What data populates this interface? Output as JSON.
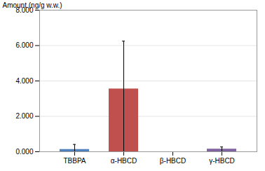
{
  "chart_data": {
    "type": "bar",
    "categories": [
      "TBBPA",
      "α-HBCD",
      "β-HBCD",
      "γ-HBCD"
    ],
    "values": [
      0.13,
      3.55,
      0.0,
      0.15
    ],
    "error_plus": [
      0.28,
      2.7,
      0.0,
      0.12
    ],
    "error_minus": [
      0.13,
      3.55,
      0.0,
      0.15
    ],
    "colors": [
      "#4f81bd",
      "#c0504d",
      "#c0c0c0",
      "#8064a2"
    ],
    "ylabel": "Amount (ng/g w.w.)",
    "ylim": [
      0,
      8.0
    ],
    "yticks": [
      {
        "value": 0.0,
        "label": "0.000"
      },
      {
        "value": 2.0,
        "label": "2.000"
      },
      {
        "value": 4.0,
        "label": "4.000"
      },
      {
        "value": 6.0,
        "label": "6.000"
      },
      {
        "value": 8.0,
        "label": "8.000"
      }
    ],
    "grid": true
  }
}
